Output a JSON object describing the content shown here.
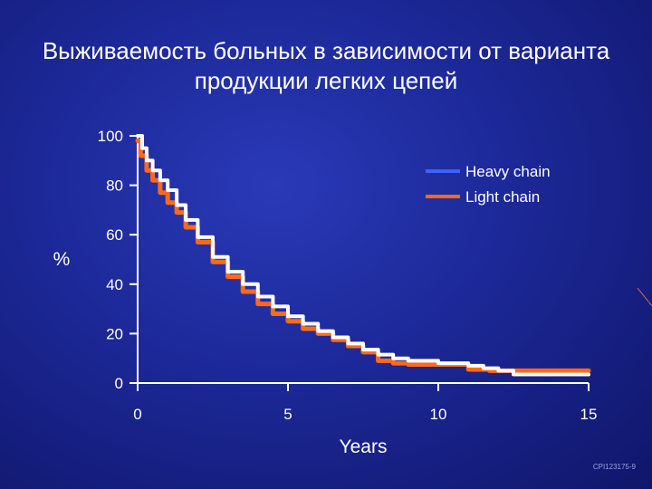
{
  "slide": {
    "title_lines": [
      "Выживаемость больных в зависимости от варианта",
      "продукции легких цепей"
    ],
    "footnote": "CPI123175-9",
    "background_color": "#1c2897"
  },
  "chart_data": {
    "type": "line",
    "title": "",
    "xlabel": "Years",
    "ylabel": "%",
    "xlim": [
      0,
      15
    ],
    "ylim": [
      0,
      100
    ],
    "x_ticks": [
      0,
      5,
      10,
      15
    ],
    "y_ticks": [
      0,
      20,
      40,
      60,
      80,
      100
    ],
    "grid": false,
    "legend_position": "top-right",
    "step": true,
    "series": [
      {
        "name": "Heavy chain",
        "color": "#3b63ff",
        "draw_color": "#ffffff",
        "x": [
          0,
          0.15,
          0.3,
          0.5,
          0.75,
          1.0,
          1.3,
          1.6,
          2.0,
          2.5,
          3.0,
          3.5,
          4.0,
          4.5,
          5.0,
          5.5,
          6.0,
          6.5,
          7.0,
          7.5,
          8.0,
          8.5,
          9.0,
          10.0,
          11.0,
          11.5,
          12.0,
          12.5,
          13.0,
          14.0,
          15.0
        ],
        "values": [
          100,
          95,
          90,
          86,
          82,
          78,
          72,
          66,
          59,
          51,
          45,
          40,
          35,
          31,
          27,
          24,
          21,
          18.5,
          16,
          13.5,
          11.5,
          10,
          9,
          8,
          7,
          6,
          5,
          3.5,
          3.5,
          3.5,
          3.5
        ]
      },
      {
        "name": "Light chain",
        "color": "#ff6a1a",
        "draw_color": "#ff6a1a",
        "x": [
          0,
          0.1,
          0.3,
          0.5,
          0.75,
          1.0,
          1.3,
          1.6,
          2.0,
          2.5,
          3.0,
          3.5,
          4.0,
          4.5,
          5.0,
          5.5,
          6.0,
          6.5,
          7.0,
          7.5,
          8.0,
          8.5,
          9.0,
          10.0,
          11.0,
          11.7,
          12.5,
          13.0,
          14.0,
          15.0
        ],
        "values": [
          98,
          92,
          86,
          82,
          77,
          73,
          69,
          63,
          57,
          49,
          43,
          37,
          32,
          28,
          25,
          22,
          20,
          17.5,
          15,
          12.5,
          9,
          8,
          7.5,
          7.5,
          5.5,
          5,
          5,
          5,
          5,
          5
        ]
      }
    ]
  }
}
